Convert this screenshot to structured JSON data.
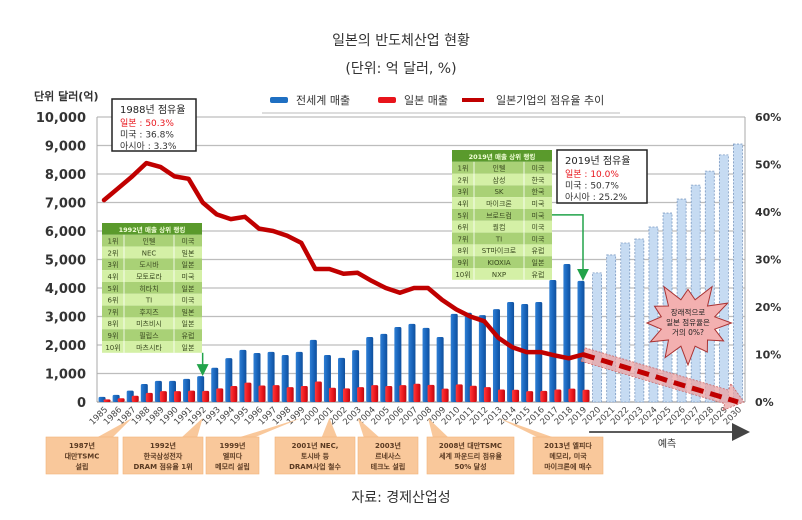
{
  "header": {
    "title": "일본의 반도체산업 현황",
    "subtitle": "(단위: 억 달러, %)"
  },
  "source": "자료: 경제산업성",
  "chart_data": {
    "type": "bar",
    "title": "일본의 반도체산업 현황",
    "subtitle": "(단위: 억 달러, %)",
    "ylabel": "단위 달러(억)",
    "ylim": [
      0,
      10000
    ],
    "y_ticks": [
      "0",
      "1,000",
      "2,000",
      "3,000",
      "4,000",
      "5,000",
      "6,000",
      "7,000",
      "8,000",
      "9,000",
      "10,000"
    ],
    "y2lim": [
      0,
      60
    ],
    "y2_ticks": [
      "0%",
      "10%",
      "20%",
      "30%",
      "40%",
      "50%",
      "60%"
    ],
    "grid": true,
    "legend_position": "top",
    "categories": [
      "1985",
      "1986",
      "1987",
      "1988",
      "1989",
      "1990",
      "1991",
      "1992",
      "1993",
      "1994",
      "1995",
      "1996",
      "1997",
      "1998",
      "1999",
      "2000",
      "2001",
      "2002",
      "2003",
      "2004",
      "2005",
      "2006",
      "2007",
      "2008",
      "2009",
      "2010",
      "2011",
      "2012",
      "2013",
      "2014",
      "2015",
      "2016",
      "2017",
      "2018",
      "2019",
      "2020",
      "2021",
      "2022",
      "2023",
      "2024",
      "2025",
      "2026",
      "2027",
      "2028",
      "2029",
      "2030"
    ],
    "series": [
      {
        "name": "전세계 매출",
        "type": "bar",
        "axis": "left",
        "color": "#1f6fc2",
        "values": [
          180,
          250,
          400,
          630,
          740,
          740,
          810,
          910,
          1200,
          1540,
          1830,
          1720,
          1760,
          1650,
          1760,
          2180,
          1650,
          1550,
          1820,
          2280,
          2390,
          2630,
          2740,
          2600,
          2280,
          3090,
          3130,
          3050,
          3260,
          3510,
          3440,
          3510,
          4280,
          4840,
          4250,
          null,
          null,
          null,
          null,
          null,
          null,
          null,
          null,
          null,
          null,
          null
        ]
      },
      {
        "name": "전세계 매출 (예측)",
        "type": "bar",
        "axis": "left",
        "color": "#c6dbf2",
        "values": [
          null,
          null,
          null,
          null,
          null,
          null,
          null,
          null,
          null,
          null,
          null,
          null,
          null,
          null,
          null,
          null,
          null,
          null,
          null,
          null,
          null,
          null,
          null,
          null,
          null,
          null,
          null,
          null,
          null,
          null,
          null,
          null,
          null,
          null,
          null,
          4530,
          5160,
          5580,
          5720,
          6140,
          6630,
          7120,
          7610,
          8100,
          8670,
          9050
        ]
      },
      {
        "name": "일본 매출",
        "type": "bar",
        "axis": "left",
        "color": "#e8141b",
        "values": [
          90,
          130,
          220,
          320,
          380,
          380,
          400,
          390,
          480,
          560,
          680,
          580,
          590,
          520,
          560,
          720,
          500,
          480,
          520,
          590,
          560,
          590,
          640,
          600,
          470,
          620,
          570,
          520,
          440,
          430,
          380,
          390,
          440,
          470,
          430,
          null,
          null,
          null,
          null,
          null,
          null,
          null,
          null,
          null,
          null,
          null
        ]
      },
      {
        "name": "일본기업의 점유율 추이",
        "type": "line",
        "axis": "right",
        "color": "#c00000",
        "values": [
          42.5,
          45,
          47.5,
          50.3,
          49.5,
          47.5,
          47,
          42,
          39.5,
          38.5,
          39,
          36.5,
          36,
          35,
          33.5,
          28,
          28,
          27,
          27.2,
          25.5,
          24,
          23,
          24,
          24,
          21.5,
          19.5,
          18,
          17,
          13.5,
          11.5,
          10.5,
          10.5,
          9.8,
          9.2,
          10.0,
          null,
          null,
          null,
          null,
          null,
          null,
          null,
          null,
          null,
          null,
          null
        ]
      },
      {
        "name": "일본기업의 점유율 추이 (예측)",
        "type": "line-dashed",
        "axis": "right",
        "color": "#c00000",
        "values": [
          null,
          null,
          null,
          null,
          null,
          null,
          null,
          null,
          null,
          null,
          null,
          null,
          null,
          null,
          null,
          null,
          null,
          null,
          null,
          null,
          null,
          null,
          null,
          null,
          null,
          null,
          null,
          null,
          null,
          null,
          null,
          null,
          null,
          null,
          10.0,
          9.1,
          8.2,
          7.3,
          6.4,
          5.5,
          4.5,
          3.6,
          2.7,
          1.8,
          0.9,
          0.0
        ]
      }
    ],
    "legend": [
      "전세계 매출",
      "일본 매출",
      "일본기업의 점유율 추이"
    ],
    "forecast_label": "예측",
    "annotations": {
      "box_1988": {
        "title": "1988년 점유율",
        "lines": [
          {
            "text": "일본 : 50.3%",
            "color": "#e8141b"
          },
          {
            "text": "미국 : 36.8%",
            "color": "#333333"
          },
          {
            "text": "아시아 : 3.3%",
            "color": "#333333"
          }
        ]
      },
      "box_2019": {
        "title": "2019년 점유율",
        "lines": [
          {
            "text": "일본 : 10.0%",
            "color": "#e8141b"
          },
          {
            "text": "미국 : 50.7%",
            "color": "#333333"
          },
          {
            "text": "아시아 : 25.2%",
            "color": "#333333"
          }
        ]
      },
      "table_1992": {
        "header": "1992년 매출 상위 랭킹",
        "year_ref": "1992",
        "rows": [
          [
            "1위",
            "인텔",
            "미국"
          ],
          [
            "2위",
            "NEC",
            "일본"
          ],
          [
            "3위",
            "도시바",
            "일본"
          ],
          [
            "4위",
            "모토로라",
            "미국"
          ],
          [
            "5위",
            "히타치",
            "일본"
          ],
          [
            "6위",
            "TI",
            "미국"
          ],
          [
            "7위",
            "후지츠",
            "일본"
          ],
          [
            "8위",
            "미츠비시",
            "일본"
          ],
          [
            "9위",
            "필립스",
            "유럽"
          ],
          [
            "10위",
            "마츠시타",
            "일본"
          ]
        ]
      },
      "table_2019": {
        "header": "2019년 매출 상위 랭킹",
        "year_ref": "2019",
        "rows": [
          [
            "1위",
            "인텔",
            "미국"
          ],
          [
            "2위",
            "삼성",
            "한국"
          ],
          [
            "3위",
            "SK",
            "한국"
          ],
          [
            "4위",
            "마이크론",
            "미국"
          ],
          [
            "5위",
            "브로드컴",
            "미국"
          ],
          [
            "6위",
            "퀄컴",
            "미국"
          ],
          [
            "7위",
            "TI",
            "미국"
          ],
          [
            "8위",
            "ST마이크로",
            "유럽"
          ],
          [
            "9위",
            "KIOXIA",
            "일본"
          ],
          [
            "10위",
            "NXP",
            "유럽"
          ]
        ]
      },
      "burst": [
        "장래적으로",
        "일본 점유율은",
        "거의 0%?"
      ],
      "timeline": [
        {
          "year_ref": "1987",
          "lines": [
            "1987년",
            "대만TSMC",
            "설립"
          ]
        },
        {
          "year_ref": "1992",
          "lines": [
            "1992년",
            "한국삼성전자",
            "DRAM 점유율 1위"
          ]
        },
        {
          "year_ref": "1999",
          "lines": [
            "1999년",
            "엘피다",
            "메모리 설립"
          ]
        },
        {
          "year_ref": "2001",
          "lines": [
            "2001년 NEC,",
            "토시바 등",
            "DRAM사업 철수"
          ]
        },
        {
          "year_ref": "2003",
          "lines": [
            "2003년",
            "르네사스",
            "테크노 설립"
          ]
        },
        {
          "year_ref": "2008",
          "lines": [
            "2008년 대만TSMC",
            "세계 파운드리 점유율",
            "50% 달성"
          ]
        },
        {
          "year_ref": "2013",
          "lines": [
            "2013년 엘피다",
            "메모리, 미국",
            "마이크론에 매수"
          ]
        }
      ]
    }
  }
}
